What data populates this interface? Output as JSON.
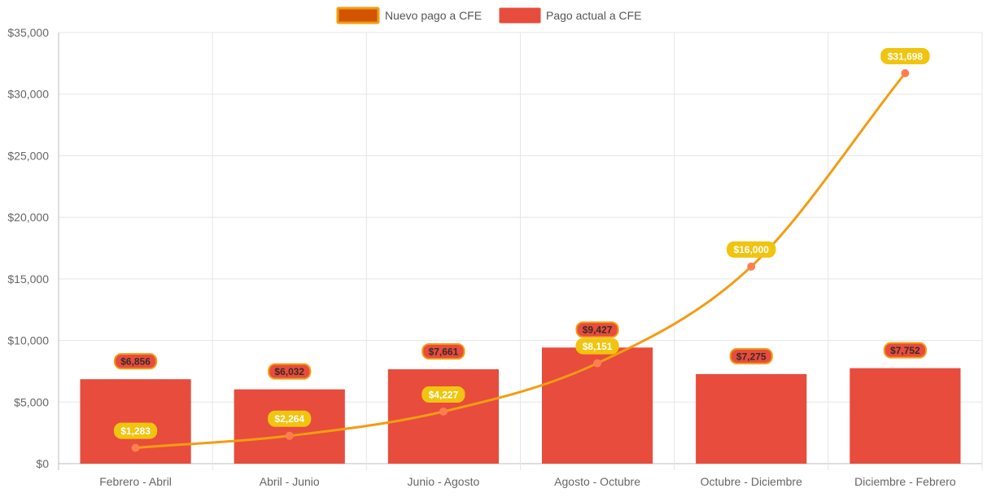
{
  "chart_data": {
    "type": "bar",
    "categories": [
      "Febrero - Abril",
      "Abril - Junio",
      "Junio - Agosto",
      "Agosto - Octubre",
      "Octubre - Diciembre",
      "Diciembre - Febrero"
    ],
    "ylim": [
      0,
      35000
    ],
    "yticks": [
      0,
      5000,
      10000,
      15000,
      20000,
      25000,
      30000,
      35000
    ],
    "ytick_labels": [
      "$0",
      "$5,000",
      "$10,000",
      "$15,000",
      "$20,000",
      "$25,000",
      "$30,000",
      "$35,000"
    ],
    "grid": true,
    "legend_position": "top-center",
    "series": [
      {
        "name": "Nuevo pago a CFE",
        "type": "line",
        "smooth": true,
        "color": "#f39c12",
        "point_color": "#ff7f50",
        "label_bg": "#f1c40f",
        "values": [
          1283,
          2264,
          4227,
          8151,
          16000,
          31698
        ],
        "labels": [
          "$1,283",
          "$2,264",
          "$4,227",
          "$8,151",
          "$16,000",
          "$31,698"
        ]
      },
      {
        "name": "Pago actual a CFE",
        "type": "bar",
        "color": "#e74c3c",
        "label_border": "#f39c12",
        "values": [
          6856,
          6032,
          7661,
          9427,
          7275,
          7752
        ],
        "labels": [
          "$6,856",
          "$6,032",
          "$7,661",
          "$9,427",
          "$7,275",
          "$7,752"
        ]
      }
    ]
  },
  "legend": {
    "line_label": "Nuevo pago a CFE",
    "bar_label": "Pago actual a CFE",
    "line_swatch_color": "#d35400",
    "line_swatch_border": "#f39c12",
    "bar_swatch_color": "#e74c3c"
  }
}
